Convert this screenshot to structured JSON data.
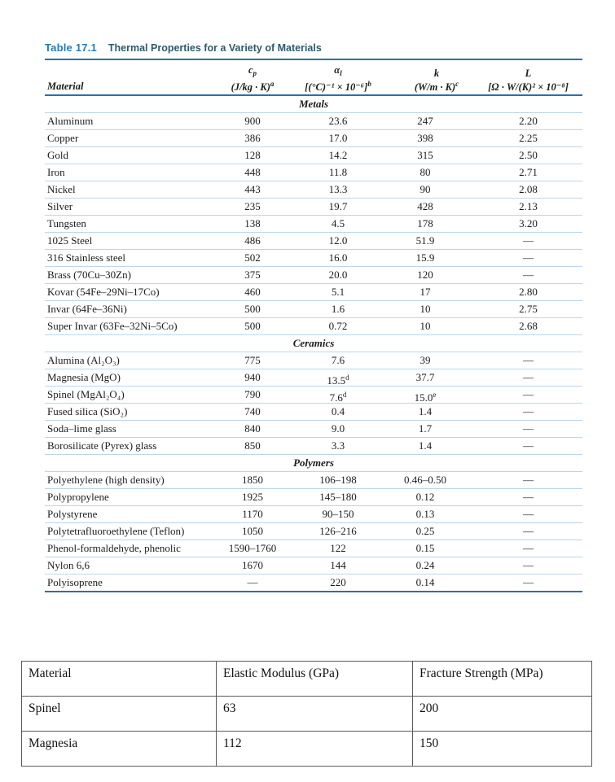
{
  "colors": {
    "rule_blue": "#2f6da8",
    "row_line_blue": "#bcd5ea",
    "table_label_blue": "#1e7ec0",
    "caption_teal": "#2b5a6e"
  },
  "table1": {
    "label": "Table 17.1",
    "caption": "Thermal Properties for a Variety of Materials",
    "columns": {
      "material_label": "Material",
      "cp_sym": "c",
      "cp_sym_sub": "p",
      "cp_units": "(J/kg · K)",
      "cp_units_sup": "a",
      "alpha_sym": "α",
      "alpha_sym_sub": "l",
      "alpha_units": "[(°C)⁻¹ × 10⁻⁶]",
      "alpha_units_sup": "b",
      "k_sym": "k",
      "k_units": "(W/m · K)",
      "k_units_sup": "c",
      "L_sym": "L",
      "L_units": "[Ω · W/(K)² × 10⁻⁸]",
      "L_units_sup": ""
    },
    "sections": [
      {
        "name": "Metals",
        "rows": [
          [
            "Aluminum",
            "900",
            "23.6",
            "247",
            "2.20"
          ],
          [
            "Copper",
            "386",
            "17.0",
            "398",
            "2.25"
          ],
          [
            "Gold",
            "128",
            "14.2",
            "315",
            "2.50"
          ],
          [
            "Iron",
            "448",
            "11.8",
            "80",
            "2.71"
          ],
          [
            "Nickel",
            "443",
            "13.3",
            "90",
            "2.08"
          ],
          [
            "Silver",
            "235",
            "19.7",
            "428",
            "2.13"
          ],
          [
            "Tungsten",
            "138",
            "4.5",
            "178",
            "3.20"
          ],
          [
            "1025 Steel",
            "486",
            "12.0",
            "51.9",
            "—"
          ],
          [
            "316 Stainless steel",
            "502",
            "16.0",
            "15.9",
            "—"
          ],
          [
            "Brass (70Cu–30Zn)",
            "375",
            "20.0",
            "120",
            "—"
          ],
          [
            "Kovar (54Fe–29Ni–17Co)",
            "460",
            "5.1",
            "17",
            "2.80"
          ],
          [
            "Invar (64Fe–36Ni)",
            "500",
            "1.6",
            "10",
            "2.75"
          ],
          [
            "Super Invar (63Fe–32Ni–5Co)",
            "500",
            "0.72",
            "10",
            "2.68"
          ]
        ]
      },
      {
        "name": "Ceramics",
        "rows": [
          [
            "Alumina (Al₂O₃)",
            "775",
            "7.6",
            "39",
            "—"
          ],
          [
            "Magnesia (MgO)",
            "940",
            {
              "v": "13.5",
              "s": "d"
            },
            "37.7",
            "—"
          ],
          [
            "Spinel (MgAl₂O₄)",
            "790",
            {
              "v": "7.6",
              "s": "d"
            },
            {
              "v": "15.0",
              "s": "e"
            },
            "—"
          ],
          [
            "Fused silica (SiO₂)",
            "740",
            "0.4",
            "1.4",
            "—"
          ],
          [
            "Soda–lime glass",
            "840",
            "9.0",
            "1.7",
            "—"
          ],
          [
            "Borosilicate (Pyrex) glass",
            "850",
            "3.3",
            "1.4",
            "—"
          ]
        ]
      },
      {
        "name": "Polymers",
        "rows": [
          [
            "Polyethylene (high density)",
            "1850",
            "106–198",
            "0.46–0.50",
            "—"
          ],
          [
            "Polypropylene",
            "1925",
            "145–180",
            "0.12",
            "—"
          ],
          [
            "Polystyrene",
            "1170",
            "90–150",
            "0.13",
            "—"
          ],
          [
            "Polytetrafluoroethylene (Teflon)",
            "1050",
            "126–216",
            "0.25",
            "—"
          ],
          [
            "Phenol-formaldehyde, phenolic",
            "1590–1760",
            "122",
            "0.15",
            "—"
          ],
          [
            "Nylon 6,6",
            "1670",
            "144",
            "0.24",
            "—"
          ],
          [
            "Polyisoprene",
            "—",
            "220",
            "0.14",
            "—"
          ]
        ]
      }
    ]
  },
  "table2": {
    "headers": [
      "Material",
      "Elastic Modulus (GPa)",
      "Fracture Strength (MPa)"
    ],
    "rows": [
      [
        "Spinel",
        "63",
        "200"
      ],
      [
        "Magnesia",
        "112",
        "150"
      ]
    ]
  }
}
